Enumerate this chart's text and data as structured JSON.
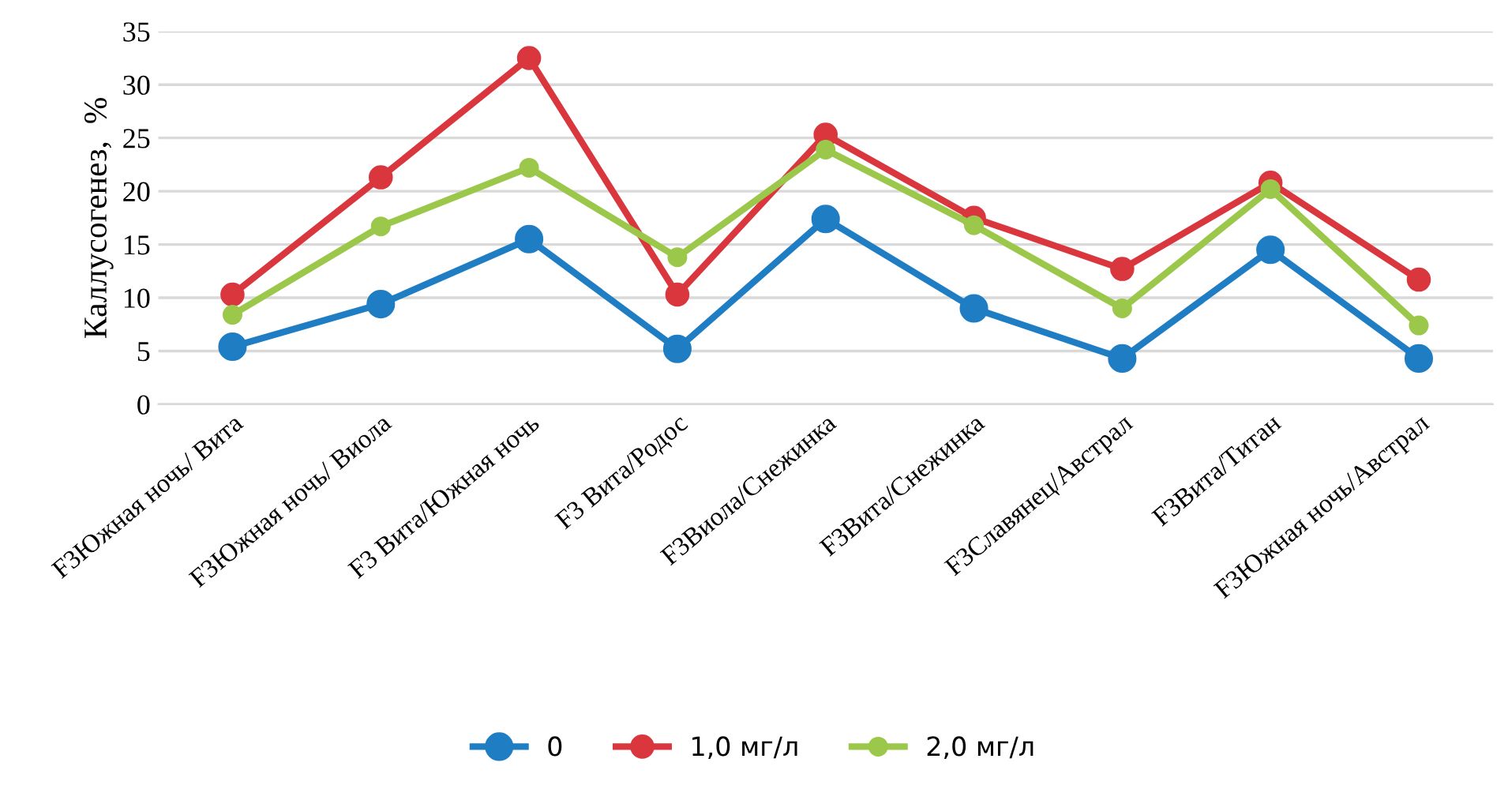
{
  "chart_data": {
    "type": "line",
    "ylabel": "Каллусогенез,  %",
    "categories": [
      "F3Южная ночь/ Вита",
      "F3Южная ночь/ Виола",
      "F3 Вита/Южная ночь",
      "F3 Вита/Родос",
      "F3Виола/Снежинка",
      "F3Вита/Снежинка",
      "F3Славянец/Австрал",
      "F3Вита/Титан",
      "F3Южная ночь/Австрал"
    ],
    "series": [
      {
        "name": "0",
        "color": "#1f7dc4",
        "values": [
          5.4,
          9.4,
          15.5,
          5.2,
          17.4,
          9.0,
          4.3,
          14.5,
          4.3
        ]
      },
      {
        "name": "1,0 мг/л",
        "color": "#d9363e",
        "values": [
          10.3,
          21.3,
          32.5,
          10.3,
          25.3,
          17.5,
          12.7,
          20.8,
          11.7
        ]
      },
      {
        "name": "2,0 мг/л",
        "color": "#9bc84a",
        "values": [
          8.4,
          16.7,
          22.2,
          13.8,
          23.9,
          16.8,
          9.0,
          20.2,
          7.4
        ]
      }
    ],
    "ylim": [
      0,
      35
    ],
    "yticks": [
      0,
      5,
      10,
      15,
      20,
      25,
      30,
      35
    ],
    "grid": "y",
    "legend": "bottom",
    "marker": "circle",
    "line_style": "solid"
  }
}
